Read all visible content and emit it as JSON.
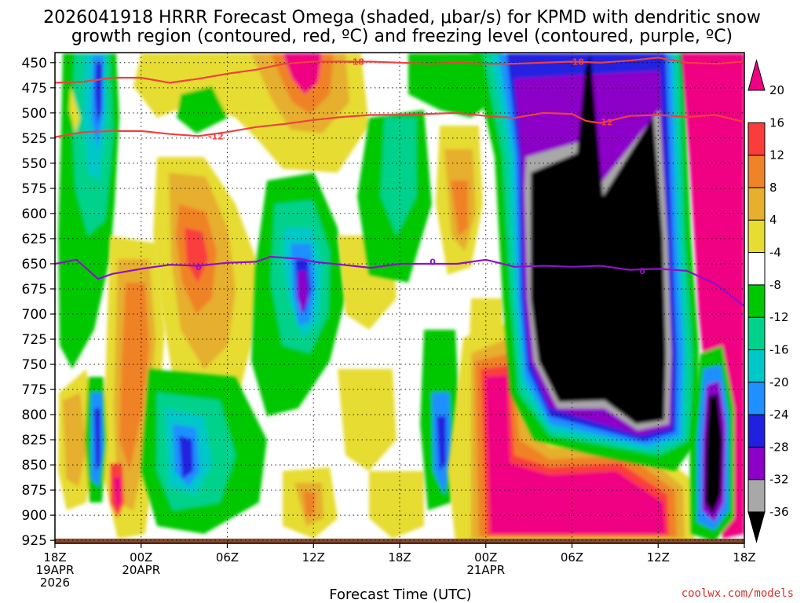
{
  "chart_data": {
    "type": "heatmap",
    "title_line1": "2026041918 HRRR Forecast Omega (shaded, μbar/s) for KPMD with dendritic snow",
    "title_line2": "growth region (contoured, red, ºC) and freezing level (contoured, purple, ºC)",
    "xlabel": "Forecast Time (UTC)",
    "ylabel": "",
    "credit": "coolwx.com/models",
    "x_range_hours": [
      0,
      48
    ],
    "y_range_hpa": [
      440,
      928
    ],
    "y_ticks": [
      450,
      475,
      500,
      525,
      550,
      575,
      600,
      625,
      650,
      675,
      700,
      725,
      750,
      775,
      800,
      825,
      850,
      875,
      900,
      925
    ],
    "x_ticks": [
      {
        "hour": 0,
        "lines": [
          "18Z",
          "19APR",
          "2026"
        ]
      },
      {
        "hour": 6,
        "lines": [
          "00Z",
          "20APR"
        ]
      },
      {
        "hour": 12,
        "lines": [
          "06Z"
        ]
      },
      {
        "hour": 18,
        "lines": [
          "12Z"
        ]
      },
      {
        "hour": 24,
        "lines": [
          "18Z"
        ]
      },
      {
        "hour": 30,
        "lines": [
          "00Z",
          "21APR"
        ]
      },
      {
        "hour": 36,
        "lines": [
          "06Z"
        ]
      },
      {
        "hour": 42,
        "lines": [
          "12Z"
        ]
      },
      {
        "hour": 48,
        "lines": [
          "18Z"
        ]
      }
    ],
    "colorbar": {
      "levels": [
        -36,
        -32,
        -28,
        -24,
        -20,
        -16,
        -12,
        -8,
        -4,
        4,
        8,
        12,
        16,
        20
      ],
      "colors": [
        "#000000",
        "#a8a8a8",
        "#8c00c8",
        "#2020e0",
        "#1e90ff",
        "#00c8c8",
        "#00d28c",
        "#00c800",
        "#ffffff",
        "#e6dc32",
        "#e6af2d",
        "#f08228",
        "#fa3c3c",
        "#f00082"
      ]
    },
    "contours": [
      {
        "name": "dgz-warm",
        "label": "-18",
        "color": "#f04040",
        "points": [
          [
            0,
            470
          ],
          [
            2,
            469
          ],
          [
            4,
            465
          ],
          [
            6,
            465
          ],
          [
            8,
            470
          ],
          [
            10,
            466
          ],
          [
            12,
            461
          ],
          [
            14,
            457
          ],
          [
            16,
            451
          ],
          [
            18,
            449
          ],
          [
            20,
            449
          ],
          [
            22,
            449
          ],
          [
            24,
            450
          ],
          [
            26,
            451
          ],
          [
            28,
            450
          ],
          [
            30,
            451
          ],
          [
            32,
            451
          ],
          [
            34,
            450
          ],
          [
            36,
            449
          ],
          [
            38,
            450
          ],
          [
            40,
            448
          ],
          [
            42,
            445
          ],
          [
            44,
            450
          ],
          [
            46,
            451
          ],
          [
            48,
            449
          ]
        ],
        "labels": [
          [
            21,
            449
          ],
          [
            36.3,
            449
          ]
        ]
      },
      {
        "name": "dgz-cold",
        "label": "-12",
        "color": "#f04040",
        "points": [
          [
            0,
            524
          ],
          [
            2,
            519
          ],
          [
            4,
            518
          ],
          [
            6,
            518
          ],
          [
            8,
            521
          ],
          [
            10,
            523
          ],
          [
            12,
            519
          ],
          [
            14,
            514
          ],
          [
            16,
            511
          ],
          [
            18,
            507
          ],
          [
            20,
            504
          ],
          [
            22,
            502
          ],
          [
            24,
            502
          ],
          [
            26,
            501
          ],
          [
            28,
            500
          ],
          [
            30,
            503
          ],
          [
            32,
            505
          ],
          [
            34,
            500
          ],
          [
            36,
            501
          ],
          [
            37,
            508
          ],
          [
            38,
            510
          ],
          [
            40,
            503
          ],
          [
            42,
            502
          ],
          [
            44,
            504
          ],
          [
            46,
            502
          ],
          [
            48,
            509
          ]
        ],
        "labels": [
          [
            11.2,
            523
          ],
          [
            38.3,
            509
          ]
        ]
      },
      {
        "name": "freezing-level",
        "label": "0",
        "color": "#9010c8",
        "points": [
          [
            0,
            650
          ],
          [
            1.5,
            646
          ],
          [
            3,
            665
          ],
          [
            4,
            660
          ],
          [
            6,
            655
          ],
          [
            8,
            651
          ],
          [
            10,
            652
          ],
          [
            12,
            649
          ],
          [
            14,
            648
          ],
          [
            15,
            643
          ],
          [
            17,
            645
          ],
          [
            18,
            648
          ],
          [
            20,
            651
          ],
          [
            22,
            654
          ],
          [
            24,
            650
          ],
          [
            26,
            650
          ],
          [
            28,
            650
          ],
          [
            30,
            646
          ],
          [
            32,
            653
          ],
          [
            34,
            652
          ],
          [
            36,
            653
          ],
          [
            38,
            652
          ],
          [
            40,
            656
          ],
          [
            42,
            655
          ],
          [
            44,
            657
          ],
          [
            46,
            670
          ],
          [
            48,
            692
          ]
        ],
        "labels": [
          [
            10,
            653
          ],
          [
            26.3,
            648
          ],
          [
            40.9,
            657
          ]
        ]
      }
    ],
    "surface_band_hpa": [
      922,
      930
    ]
  }
}
